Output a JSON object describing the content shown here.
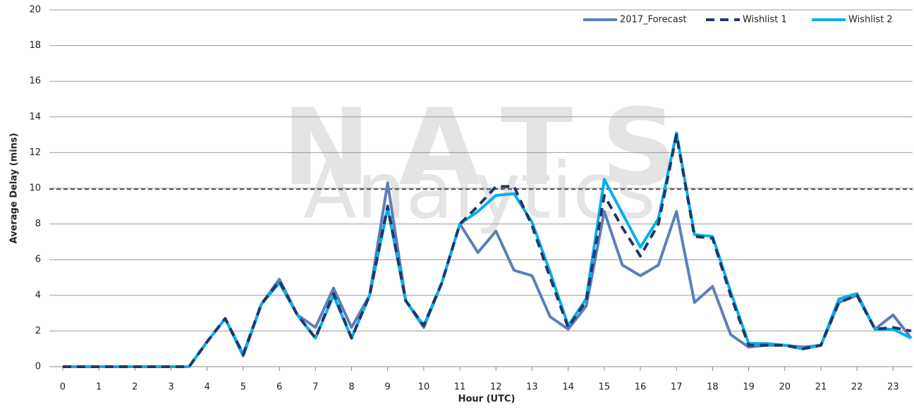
{
  "chart_data": {
    "type": "line",
    "y_label": "Average Delay (mins)",
    "x_label": "Hour (UTC)",
    "watermark": [
      "NATS",
      "Analytics"
    ],
    "x": [
      0,
      0.5,
      1,
      1.5,
      2,
      2.5,
      3,
      3.5,
      4,
      4.5,
      5,
      5.5,
      6,
      6.5,
      7,
      7.5,
      8,
      8.5,
      9,
      9.5,
      10,
      10.5,
      11,
      11.5,
      12,
      12.5,
      13,
      13.5,
      14,
      14.5,
      15,
      15.5,
      16,
      16.5,
      17,
      17.5,
      18,
      18.5,
      19,
      19.5,
      20,
      20.5,
      21,
      21.5,
      22,
      22.5,
      23,
      23.5
    ],
    "series": [
      {
        "name": "2017_Forecast",
        "color": "#5b7fbd",
        "dash": false,
        "values": [
          0,
          0,
          0,
          0,
          0,
          0,
          0,
          0,
          1.4,
          2.7,
          0.6,
          3.5,
          4.9,
          2.9,
          2.2,
          4.4,
          2.2,
          4.0,
          10.3,
          3.7,
          2.2,
          4.7,
          8.0,
          6.4,
          7.6,
          5.4,
          5.1,
          2.8,
          2.1,
          3.4,
          8.7,
          5.7,
          5.1,
          5.7,
          8.7,
          3.6,
          4.5,
          1.8,
          1.1,
          1.2,
          1.2,
          1.1,
          1.2,
          3.6,
          4.0,
          2.1,
          2.9,
          1.6
        ]
      },
      {
        "name": "Wishlist 1",
        "color": "#1f3864",
        "dash": true,
        "values": [
          0,
          0,
          0,
          0,
          0,
          0,
          0,
          0,
          1.4,
          2.7,
          0.7,
          3.5,
          4.8,
          2.9,
          1.6,
          4.1,
          1.6,
          4.0,
          9.0,
          3.7,
          2.3,
          4.7,
          8.0,
          9.0,
          10.1,
          10.1,
          7.9,
          5.0,
          2.2,
          3.7,
          9.6,
          7.8,
          6.2,
          8.0,
          13.0,
          7.3,
          7.2,
          4.0,
          1.2,
          1.2,
          1.2,
          1.0,
          1.2,
          3.6,
          4.0,
          2.1,
          2.2,
          2.0
        ]
      },
      {
        "name": "Wishlist 2",
        "color": "#00b0f0",
        "dash": false,
        "values": [
          0,
          0,
          0,
          0,
          0,
          0,
          0,
          0,
          1.4,
          2.7,
          0.7,
          3.5,
          4.7,
          2.9,
          1.6,
          4.0,
          1.6,
          4.0,
          8.9,
          3.7,
          2.3,
          4.7,
          8.0,
          8.7,
          9.6,
          9.7,
          8.1,
          5.3,
          2.3,
          3.8,
          10.5,
          8.6,
          6.7,
          8.3,
          13.1,
          7.4,
          7.3,
          4.2,
          1.3,
          1.3,
          1.2,
          1.0,
          1.2,
          3.8,
          4.1,
          2.1,
          2.1,
          1.6
        ]
      }
    ],
    "threshold": 9.95,
    "xlim": [
      -0.37,
      23.54
    ],
    "xticks": [
      0,
      1,
      2,
      3,
      4,
      5,
      6,
      7,
      8,
      9,
      10,
      11,
      12,
      13,
      14,
      15,
      16,
      17,
      18,
      19,
      20,
      21,
      22,
      23
    ],
    "ylim": [
      0,
      20
    ],
    "yticks": [
      0,
      2,
      4,
      6,
      8,
      10,
      12,
      14,
      16,
      18,
      20
    ],
    "grid": true,
    "legend": "top-right"
  }
}
